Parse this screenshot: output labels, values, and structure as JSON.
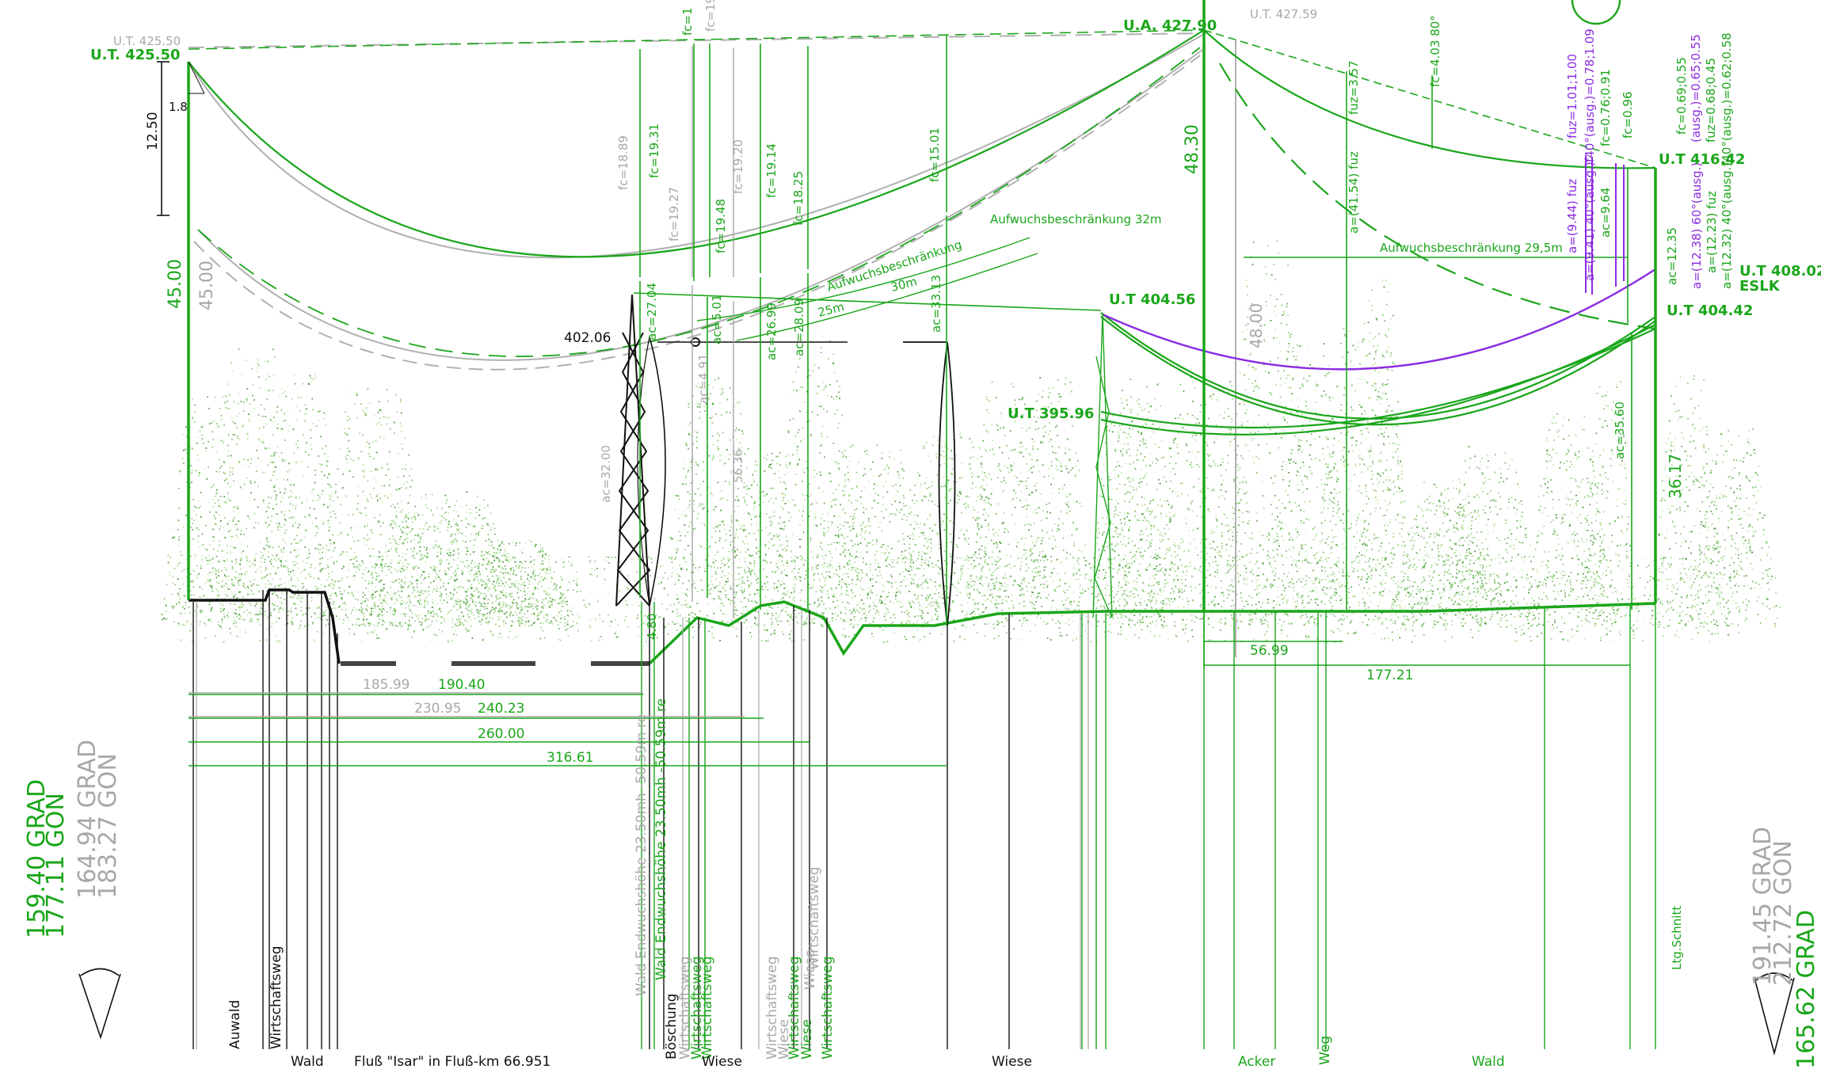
{
  "top_labels": {
    "ut_left_grey": "U.T. 425.50",
    "ut_left_green": "U.T. 425.50",
    "ua_mid": "U.A. 427.90",
    "ut_mid_grey": "U.T. 427.59",
    "ut_right_416": "U.T 416.42",
    "ut_right_408": "U.T 408.02",
    "eslk": "ESLK",
    "ut_right_404": "U.T 404.42",
    "ut_404_56": "U.T 404.56",
    "ut_395": "U.T 395.96",
    "elev_402": "402.06"
  },
  "dims_vertical": {
    "d1_8": "1.8",
    "d12_50": "12.50",
    "d45_green": "45.00",
    "d45_grey": "45.00",
    "d48_30": "48.30",
    "d48_grey": "48.00",
    "d36_17": "36.17",
    "d4_80": "4.80"
  },
  "fc_labels": {
    "fc1889": "fc=18.89",
    "fc1931": "fc=19.31",
    "fc1927": "fc=19.27",
    "fc1948": "fc=19.48",
    "fc1920": "fc=19.20",
    "fc1914": "fc=19.14",
    "fc1825": "fc=18.25",
    "fc1501": "fc=15.01",
    "fctop1": "fc=1",
    "fctop2": "fc=19",
    "fc403": "fc=4.03  80°",
    "fuz357": "fuz=3.57",
    "a4154": "a=(41.54) fuz",
    "fc069": "fc=0.69;0.55",
    "fc076": "fc=0.76;0.91",
    "fc096": "fc=0.96",
    "fuz101": "fuz=1.01;1.00",
    "f40_078": "f40°(ausg.)=0.78;1.09",
    "ausg065": "(ausg.)=0.65;0.55",
    "fuz068": "fuz=0.68;0.45",
    "f40_062": "f40°(ausg.)=0.62;0.58",
    "a944": "a=(9.44) fuz",
    "a941": "a=(9.41) 40°(ausg.)",
    "ac964": "ac=9.64",
    "ac1235": "ac=12.35",
    "a1238": "a=(12.38) 60°(ausg.)",
    "a1223": "a=(12.23) fuz",
    "a1232": "a=(12.32) 40°(ausg.)"
  },
  "ac_labels": {
    "ac2704": "ac=27.04",
    "ac501": "ac=5.01",
    "ac491": "ac=4.91",
    "ac2699": "ac=26.99",
    "ac2809": "ac=28.09",
    "ac3313": "ac=33.13",
    "ac3200": "ac=32.00",
    "ac3560": "ac=35.60",
    "ac5636": "56.36"
  },
  "growth": {
    "aufw": "Aufwuchsbeschränkung",
    "aufw30": "30m",
    "aufw25": "25m",
    "aufw32": "Aufwuchsbeschränkung 32m",
    "aufw29": "Aufwuchsbeschränkung 29,5m"
  },
  "horizontal_dims": {
    "h18599": "185.99",
    "h19040": "190.40",
    "h23095": "230.95",
    "h24023": "240.23",
    "h26000": "260.00",
    "h31661": "316.61",
    "h5699": "56.99",
    "h17721": "177.21"
  },
  "angles": {
    "left_green_grad": "159.40 GRAD",
    "left_green_gon": "177.11 GON",
    "left_grey_grad": "164.94 GRAD",
    "left_grey_gon": "183.27 GON",
    "right_grey_grad": "191.45 GRAD",
    "right_grey_gon": "212.72 GON",
    "right_green_grad": "165.62 GRAD"
  },
  "vertical_notes": {
    "wald_grey": "Wald Endwuchshöhe 23.50mh -50.59m re",
    "wald_green": "Wald Endwuchshöhe 23.50mh -50.59m re",
    "auwald": "Auwald",
    "wirtschaftsweg1": "Wirtschaftsweg",
    "boschung": "Böschung",
    "wirt_g1": "Wirtschaftsweg",
    "wirt_grey1": "Wirtschaftsweg",
    "wirt_g2": "Wirtschaftsweg",
    "wirt_grey2": "Wirtschaftsweg",
    "wiese_grey": "Wiese",
    "wirt_g3": "Wirtschaftsweg",
    "wiese_g": "Wiese",
    "wiese_grey2": "Wiese",
    "wirt_grey3": "Wirtschaftsweg",
    "wirt_g4": "Wirtschaftsweg",
    "ltg": "Ltg.Schnitt",
    "weg": "Weg"
  },
  "bottom_labels": {
    "wald1": "Wald",
    "fluss": "Fluß \"Isar\" in Fluß-km 66.951",
    "wiese1": "Wiese",
    "wiese2": "Wiese",
    "acker": "Acker",
    "wald2": "Wald"
  },
  "colors": {
    "green": "#1aa61a",
    "grey": "#a8a8a8",
    "purple": "#8a2be2",
    "black": "#111111"
  }
}
